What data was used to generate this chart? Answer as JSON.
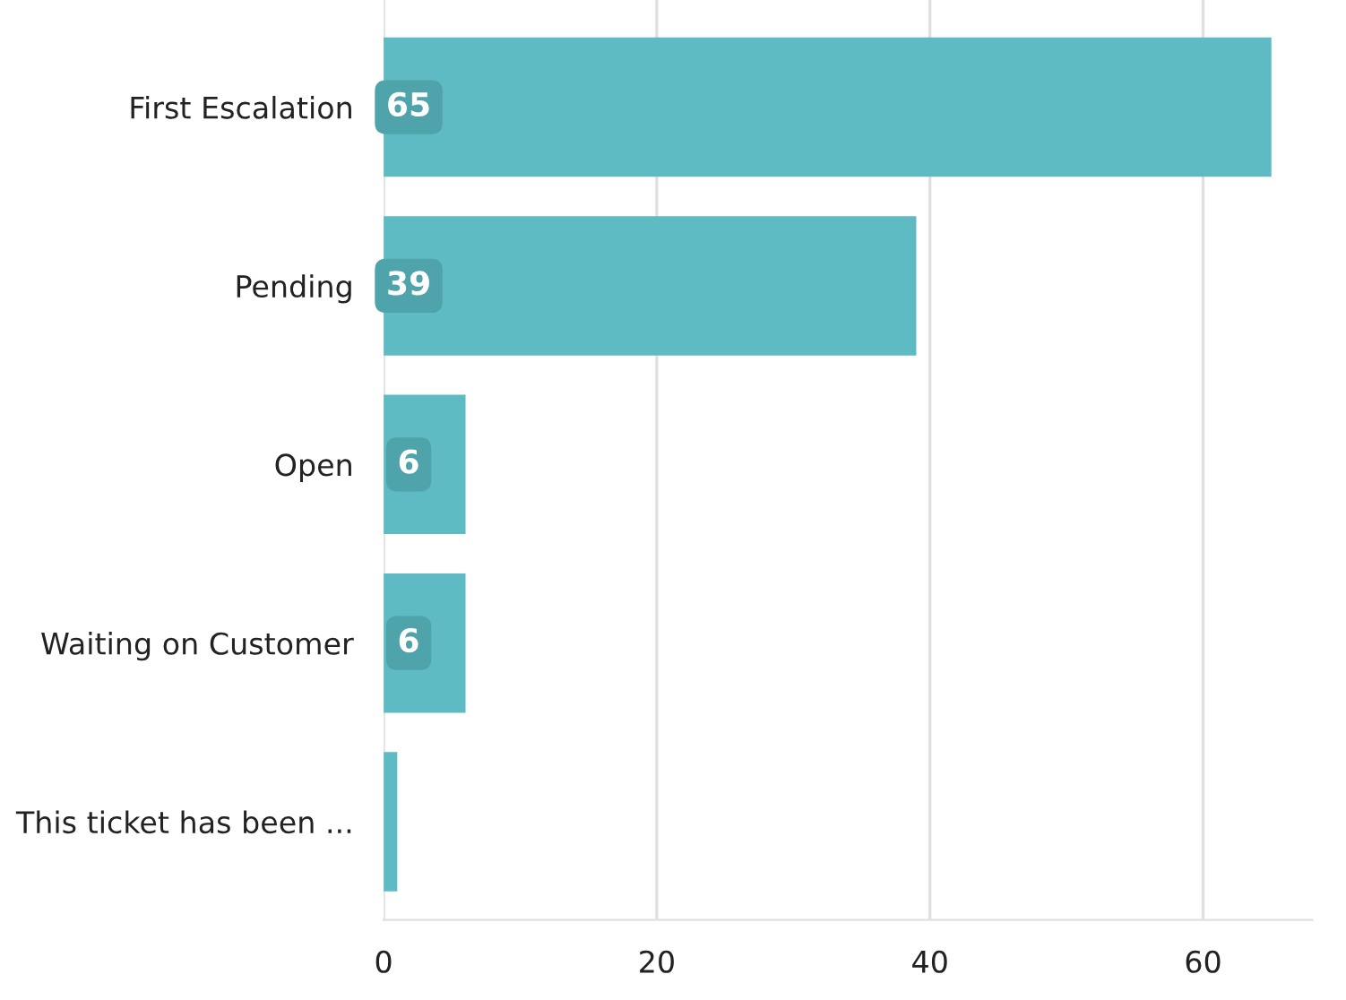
{
  "chart_data": {
    "type": "bar",
    "orientation": "horizontal",
    "categories": [
      "First Escalation",
      "Pending",
      "Open",
      "Waiting on Customer",
      "This ticket has been ..."
    ],
    "values": [
      65,
      39,
      6,
      6,
      1
    ],
    "value_labels": [
      "65",
      "39",
      "6",
      "6",
      null
    ],
    "color": "#5fbbc3",
    "xlim": [
      0,
      68
    ],
    "xticks": [
      0,
      20,
      40,
      60
    ],
    "grid": "x",
    "legend": false
  }
}
